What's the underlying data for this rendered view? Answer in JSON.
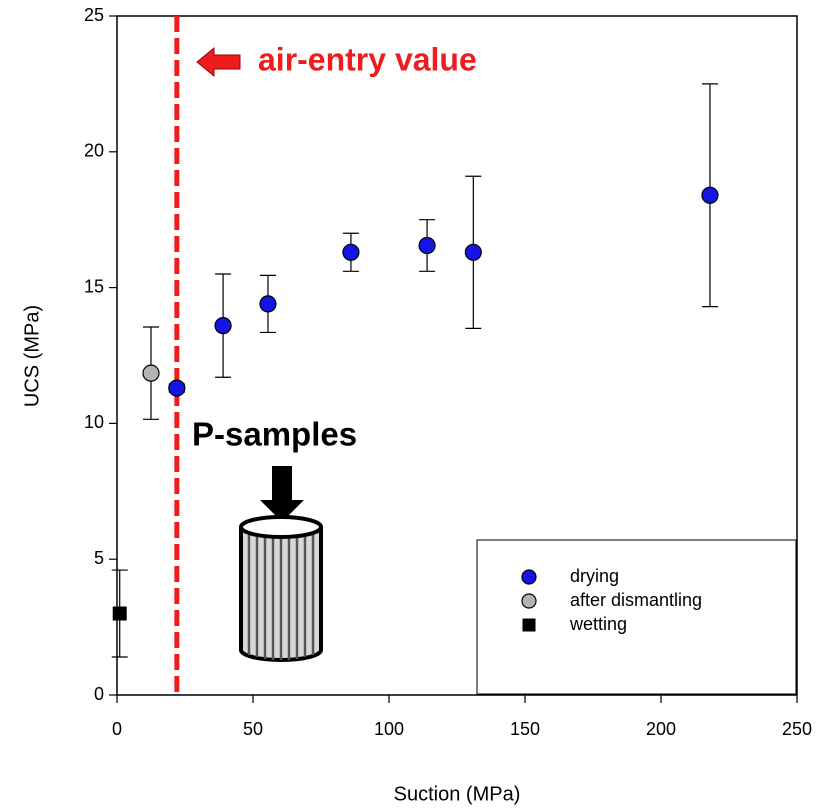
{
  "chart_data": {
    "type": "scatter",
    "x_label": "Suction (MPa)",
    "y_label": "UCS (MPa)",
    "xlim": [
      0,
      250
    ],
    "xticks": [
      0,
      50,
      100,
      150,
      200,
      250
    ],
    "ylim": [
      0,
      25
    ],
    "yticks": [
      0,
      5,
      10,
      15,
      20,
      25
    ],
    "series": [
      {
        "name": "drying",
        "color": "#1414e6",
        "marker": "circle",
        "x": [
          22,
          39,
          55.5,
          86,
          114,
          131,
          218
        ],
        "values": [
          11.3,
          13.6,
          14.4,
          16.3,
          16.55,
          16.3,
          18.4
        ],
        "errors": [
          0.15,
          1.9,
          1.05,
          0.7,
          0.95,
          2.8,
          4.1
        ]
      },
      {
        "name": "after dismantling",
        "color": "#b4b4b4",
        "marker": "circle",
        "x": [
          12.5
        ],
        "values": [
          11.85
        ],
        "errors": [
          1.7
        ]
      },
      {
        "name": "wetting",
        "color": "#000000",
        "marker": "square",
        "x": [
          1
        ],
        "values": [
          3.0
        ],
        "errors": [
          1.6
        ]
      }
    ],
    "vline": {
      "x": 22,
      "color": "#ee1c1c",
      "label": "air-entry value"
    },
    "annotation": "P-samples",
    "legend": "lower right"
  }
}
